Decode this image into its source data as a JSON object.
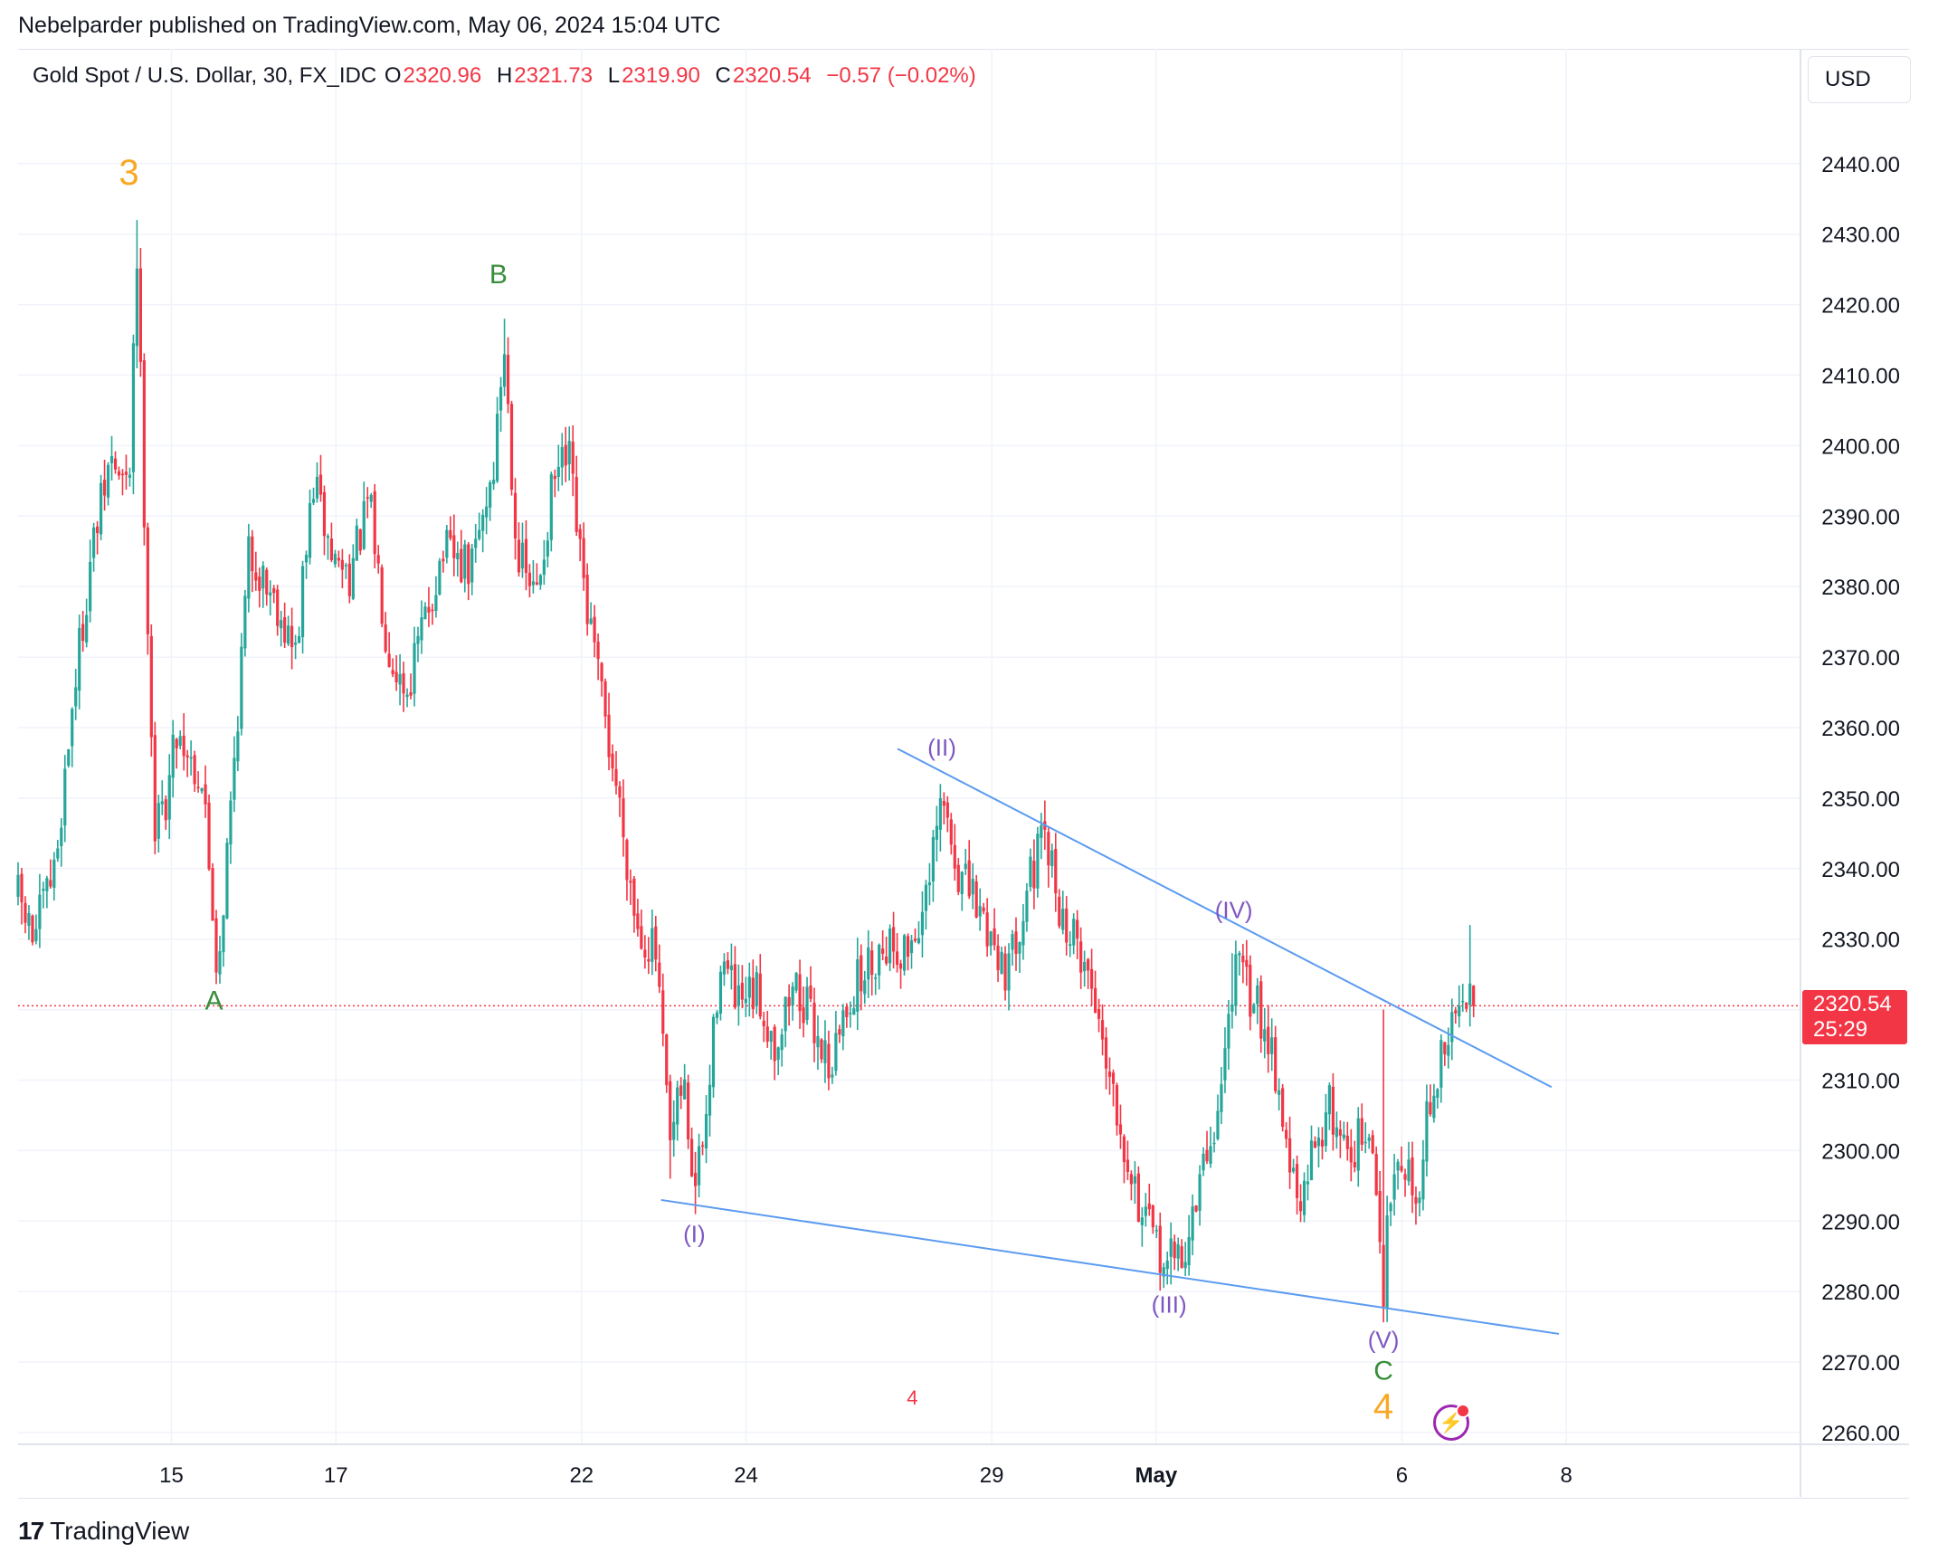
{
  "publisher_line": "Nebelparder published on TradingView.com, May 06, 2024 15:04 UTC",
  "legend": {
    "symbol": "Gold Spot / U.S. Dollar, 30, FX_IDC",
    "o_label": "O",
    "o_value": "2320.96",
    "h_label": "H",
    "h_value": "2321.73",
    "l_label": "L",
    "l_value": "2319.90",
    "c_label": "C",
    "c_value": "2320.54",
    "change": "−0.57 (−0.02%)"
  },
  "currency_button": "USD",
  "last_price": {
    "value": "2320.54",
    "countdown": "25:29"
  },
  "footer_brand": "TradingView",
  "colors": {
    "up": "#26a69a",
    "down": "#f23645",
    "trendline": "#5b9bf0",
    "wave_minor": "#7e57c2",
    "wave_abc": "#388e3c",
    "wave_major": "#f9a825"
  },
  "chart_data": {
    "type": "candlestick",
    "symbol": "XAUUSD",
    "timeframe": "30",
    "ylim": [
      2256,
      2450
    ],
    "yticks": [
      "2440.00",
      "2430.00",
      "2420.00",
      "2410.00",
      "2400.00",
      "2390.00",
      "2380.00",
      "2370.00",
      "2360.00",
      "2350.00",
      "2340.00",
      "2330.00",
      "2320.00",
      "2310.00",
      "2300.00",
      "2290.00",
      "2280.00",
      "2270.00",
      "2260.00"
    ],
    "xticks": [
      {
        "label": "15",
        "t": 8.3
      },
      {
        "label": "17",
        "t": 17.2
      },
      {
        "label": "22",
        "t": 30.5
      },
      {
        "label": "24",
        "t": 39.4
      },
      {
        "label": "29",
        "t": 52.7
      },
      {
        "label": "May",
        "t": 61.6
      },
      {
        "label": "6",
        "t": 74.9
      },
      {
        "label": "8",
        "t": 83.8
      }
    ],
    "price_path": [
      {
        "t": 0,
        "p": 2336
      },
      {
        "t": 0.8,
        "p": 2330
      },
      {
        "t": 2,
        "p": 2340
      },
      {
        "t": 3,
        "p": 2365
      },
      {
        "t": 4,
        "p": 2385
      },
      {
        "t": 5,
        "p": 2398
      },
      {
        "t": 6,
        "p": 2393
      },
      {
        "t": 6.4,
        "p": 2430
      },
      {
        "t": 6.9,
        "p": 2385
      },
      {
        "t": 7.4,
        "p": 2345
      },
      {
        "t": 8,
        "p": 2350
      },
      {
        "t": 8.6,
        "p": 2360
      },
      {
        "t": 10,
        "p": 2352
      },
      {
        "t": 10.8,
        "p": 2325
      },
      {
        "t": 11.6,
        "p": 2352
      },
      {
        "t": 12.5,
        "p": 2385
      },
      {
        "t": 14,
        "p": 2378
      },
      {
        "t": 15,
        "p": 2370
      },
      {
        "t": 16,
        "p": 2395
      },
      {
        "t": 17,
        "p": 2384
      },
      {
        "t": 18,
        "p": 2382
      },
      {
        "t": 19,
        "p": 2392
      },
      {
        "t": 20,
        "p": 2372
      },
      {
        "t": 21,
        "p": 2365
      },
      {
        "t": 22,
        "p": 2375
      },
      {
        "t": 23,
        "p": 2385
      },
      {
        "t": 24.5,
        "p": 2382
      },
      {
        "t": 25.8,
        "p": 2398
      },
      {
        "t": 26.3,
        "p": 2415
      },
      {
        "t": 27,
        "p": 2385
      },
      {
        "t": 28,
        "p": 2378
      },
      {
        "t": 29,
        "p": 2395
      },
      {
        "t": 29.8,
        "p": 2398
      },
      {
        "t": 30.5,
        "p": 2382
      },
      {
        "t": 31.5,
        "p": 2365
      },
      {
        "t": 32.5,
        "p": 2350
      },
      {
        "t": 33.5,
        "p": 2332
      },
      {
        "t": 34.5,
        "p": 2328
      },
      {
        "t": 35.3,
        "p": 2300
      },
      {
        "t": 36,
        "p": 2310
      },
      {
        "t": 36.6,
        "p": 2294
      },
      {
        "t": 37.3,
        "p": 2305
      },
      {
        "t": 38,
        "p": 2328
      },
      {
        "t": 39,
        "p": 2320
      },
      {
        "t": 40,
        "p": 2322
      },
      {
        "t": 41,
        "p": 2315
      },
      {
        "t": 42,
        "p": 2324
      },
      {
        "t": 43,
        "p": 2318
      },
      {
        "t": 44,
        "p": 2312
      },
      {
        "t": 45,
        "p": 2322
      },
      {
        "t": 46,
        "p": 2326
      },
      {
        "t": 47,
        "p": 2330
      },
      {
        "t": 48,
        "p": 2328
      },
      {
        "t": 49.2,
        "p": 2335
      },
      {
        "t": 50,
        "p": 2350
      },
      {
        "t": 50.8,
        "p": 2340
      },
      {
        "t": 51.8,
        "p": 2335
      },
      {
        "t": 52.8,
        "p": 2330
      },
      {
        "t": 53.6,
        "p": 2325
      },
      {
        "t": 54.6,
        "p": 2338
      },
      {
        "t": 55.6,
        "p": 2344
      },
      {
        "t": 56.6,
        "p": 2332
      },
      {
        "t": 57.6,
        "p": 2328
      },
      {
        "t": 58.6,
        "p": 2318
      },
      {
        "t": 59.6,
        "p": 2305
      },
      {
        "t": 60.6,
        "p": 2293
      },
      {
        "t": 61.4,
        "p": 2287
      },
      {
        "t": 62.3,
        "p": 2284
      },
      {
        "t": 63.2,
        "p": 2286
      },
      {
        "t": 64.2,
        "p": 2298
      },
      {
        "t": 65,
        "p": 2306
      },
      {
        "t": 65.8,
        "p": 2326
      },
      {
        "t": 66.8,
        "p": 2322
      },
      {
        "t": 67.8,
        "p": 2316
      },
      {
        "t": 68.6,
        "p": 2302
      },
      {
        "t": 69.4,
        "p": 2290
      },
      {
        "t": 70.2,
        "p": 2302
      },
      {
        "t": 71,
        "p": 2306
      },
      {
        "t": 72,
        "p": 2300
      },
      {
        "t": 72.8,
        "p": 2302
      },
      {
        "t": 73.4,
        "p": 2298
      },
      {
        "t": 73.9,
        "p": 2280
      },
      {
        "t": 74.4,
        "p": 2300
      },
      {
        "t": 75.2,
        "p": 2298
      },
      {
        "t": 75.6,
        "p": 2292
      },
      {
        "t": 76.3,
        "p": 2305
      },
      {
        "t": 77,
        "p": 2312
      },
      {
        "t": 77.6,
        "p": 2318
      },
      {
        "t": 78.2,
        "p": 2320
      },
      {
        "t": 78.6,
        "p": 2327
      },
      {
        "t": 78.9,
        "p": 2320.5
      }
    ],
    "extreme_wicks": [
      {
        "t": 6.4,
        "high": 2432
      },
      {
        "t": 10.8,
        "low": 2324
      },
      {
        "t": 26.3,
        "high": 2418
      },
      {
        "t": 35.3,
        "low": 2296
      },
      {
        "t": 36.6,
        "low": 2291
      },
      {
        "t": 50,
        "high": 2352
      },
      {
        "t": 55.6,
        "high": 2347
      },
      {
        "t": 62.3,
        "low": 2281
      },
      {
        "t": 65.8,
        "high": 2328
      },
      {
        "t": 73.9,
        "low": 2277,
        "high": 2320
      },
      {
        "t": 78.6,
        "high": 2332
      }
    ],
    "trendlines": [
      {
        "from": {
          "t": 34.8,
          "p": 2293
        },
        "to": {
          "t": 83.4,
          "p": 2274
        }
      },
      {
        "from": {
          "t": 47.6,
          "p": 2357
        },
        "to": {
          "t": 83.0,
          "p": 2309
        }
      }
    ],
    "last_price_line": 2320.54,
    "wave_labels": [
      {
        "text": "3",
        "t": 6.0,
        "p": 2437,
        "kind": "major"
      },
      {
        "text": "A",
        "t": 10.6,
        "p": 2320,
        "kind": "abc"
      },
      {
        "text": "B",
        "t": 26.0,
        "p": 2423,
        "kind": "abc"
      },
      {
        "text": "(I)",
        "t": 36.6,
        "p": 2287,
        "kind": "minor"
      },
      {
        "text": "(II)",
        "t": 50.0,
        "p": 2356,
        "kind": "minor"
      },
      {
        "text": "(III)",
        "t": 62.3,
        "p": 2277,
        "kind": "minor"
      },
      {
        "text": "(IV)",
        "t": 65.8,
        "p": 2333,
        "kind": "minor"
      },
      {
        "text": "(V)",
        "t": 73.9,
        "p": 2272,
        "kind": "minor"
      },
      {
        "text": "C",
        "t": 73.9,
        "p": 2267.5,
        "kind": "abc"
      },
      {
        "text": "4",
        "t": 73.9,
        "p": 2262,
        "kind": "major"
      },
      {
        "text": "4",
        "t": 48.4,
        "p": 2264,
        "kind": "small-red"
      }
    ]
  }
}
